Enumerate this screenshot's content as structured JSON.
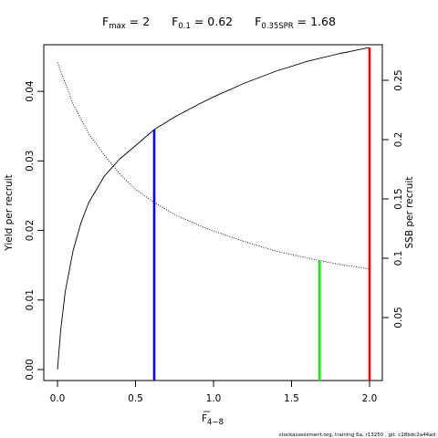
{
  "title": {
    "fmax_label": "F",
    "fmax_sub": "max",
    "fmax_value": " = 2",
    "f01_label": "F",
    "f01_sub": "0.1",
    "f01_value": " = 0.62",
    "fspr_label": "F",
    "fspr_sub": "0.35SPR",
    "fspr_value": " = 1.68"
  },
  "footer": "stockassessment.org, training 6a, r13250 , git: c28bdc2a44ad",
  "chart_data": {
    "type": "line",
    "xlabel": {
      "main": "F",
      "sub": "4−8"
    },
    "ylabel_left": "Yield per recruit",
    "ylabel_right": "SSB per recruit",
    "xlim": [
      0,
      2
    ],
    "ylim_left": [
      0,
      0.045
    ],
    "ylim_right": [
      0,
      0.27
    ],
    "xticks": [
      0,
      0.5,
      1,
      1.5,
      2
    ],
    "xtick_labels": [
      "0.0",
      "0.5",
      "1.0",
      "1.5",
      "2.0"
    ],
    "yticks_left": [
      0,
      0.01,
      0.02,
      0.03,
      0.04
    ],
    "ytick_labels_left": [
      "0.00",
      "0.01",
      "0.02",
      "0.03",
      "0.04"
    ],
    "yticks_right": [
      0.05,
      0.1,
      0.15,
      0.2,
      0.25
    ],
    "ytick_labels_right": [
      "0.05",
      "0.1",
      "0.15",
      "0.2",
      "0.25"
    ],
    "series": [
      {
        "name": "Yield per recruit",
        "axis": "left",
        "style": "solid",
        "color": "#000000",
        "x": [
          0,
          0.02,
          0.05,
          0.1,
          0.15,
          0.2,
          0.3,
          0.4,
          0.5,
          0.62,
          0.75,
          0.9,
          1.0,
          1.2,
          1.4,
          1.6,
          1.8,
          2.0
        ],
        "y": [
          0,
          0.0055,
          0.0112,
          0.0171,
          0.0211,
          0.024,
          0.0278,
          0.0303,
          0.0322,
          0.0345,
          0.0363,
          0.0381,
          0.0392,
          0.0412,
          0.0429,
          0.0443,
          0.0454,
          0.0463
        ]
      },
      {
        "name": "SSB per recruit",
        "axis": "right",
        "style": "dotted",
        "color": "#000000",
        "x": [
          0,
          0.1,
          0.2,
          0.3,
          0.4,
          0.5,
          0.62,
          0.75,
          0.9,
          1.0,
          1.2,
          1.4,
          1.68,
          1.8,
          2.0
        ],
        "y": [
          0.265,
          0.23,
          0.205,
          0.187,
          0.171,
          0.158,
          0.147,
          0.137,
          0.128,
          0.123,
          0.114,
          0.106,
          0.098,
          0.095,
          0.091
        ]
      }
    ],
    "reference_lines": [
      {
        "name": "F0.1",
        "x": 0.62,
        "y": 0.0345,
        "axis": "left",
        "color": "#0000ff"
      },
      {
        "name": "F0.35SPR",
        "x": 1.68,
        "y": 0.098,
        "axis": "right",
        "color": "#00ff00"
      },
      {
        "name": "Fmax",
        "x": 2.0,
        "y": 0.0463,
        "axis": "left",
        "color": "#ff0000"
      }
    ],
    "grid": false,
    "legend": "none"
  }
}
